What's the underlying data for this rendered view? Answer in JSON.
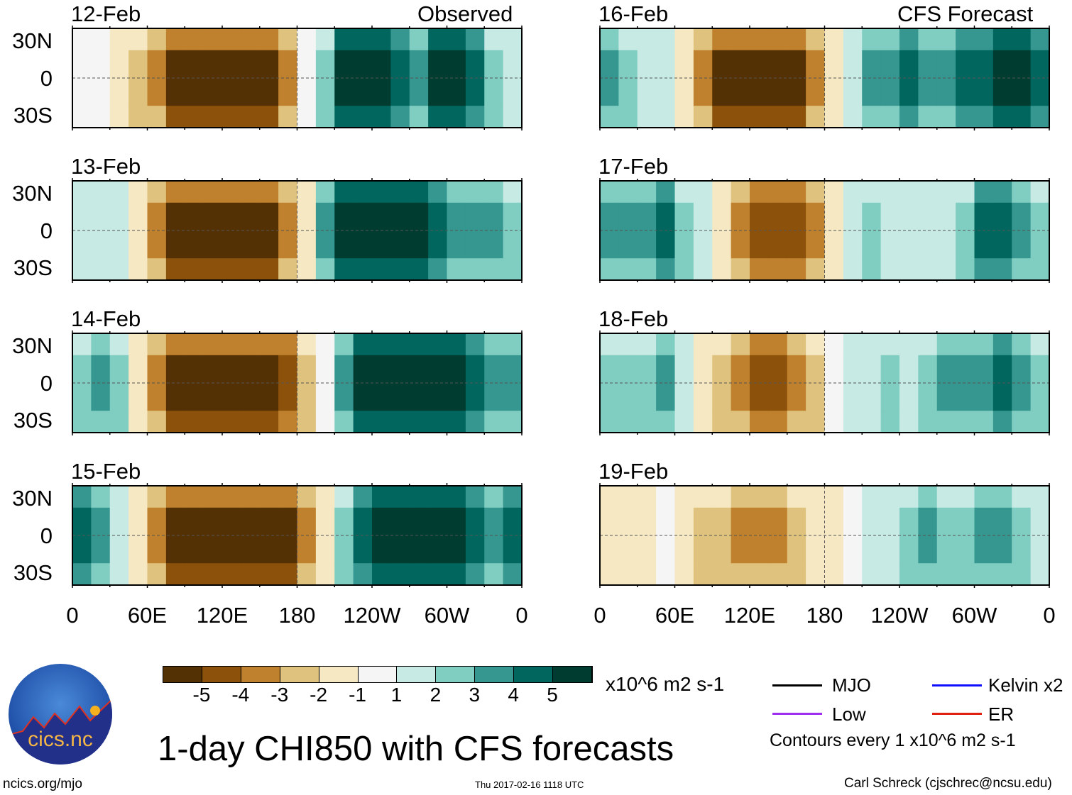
{
  "headers": {
    "observed": "Observed",
    "forecast": "CFS Forecast"
  },
  "lat_labels": [
    "30N",
    "0",
    "30S"
  ],
  "lon_labels": [
    "0",
    "60E",
    "120E",
    "180",
    "120W",
    "60W",
    "0"
  ],
  "colors": [
    "#543005",
    "#8c510a",
    "#bf812d",
    "#dfc27d",
    "#f6e8c3",
    "#f5f5f5",
    "#c7eae5",
    "#80cdc1",
    "#35978f",
    "#01665e",
    "#003c30"
  ],
  "chart_data": {
    "type": "heatmap",
    "title": "1-day CHI850 with CFS forecasts",
    "units": "x10^6 m2 s-1",
    "xlabel_ticks": [
      "0",
      "60E",
      "120E",
      "180",
      "120W",
      "60W",
      "0"
    ],
    "lon_bins_deg": [
      0,
      15,
      30,
      45,
      60,
      75,
      90,
      105,
      120,
      135,
      150,
      165,
      180,
      195,
      210,
      225,
      240,
      255,
      270,
      285,
      300,
      315,
      330,
      345
    ],
    "panels": [
      {
        "date": "12-Feb",
        "kind": "Observed",
        "values": [
          0,
          0,
          -1,
          -2,
          -3,
          -5,
          -5,
          -5,
          -5,
          -5,
          -5,
          -3,
          0,
          2,
          5,
          5,
          5,
          4,
          3,
          5,
          5,
          4,
          2,
          1
        ]
      },
      {
        "date": "13-Feb",
        "kind": "Observed",
        "values": [
          1,
          1,
          1,
          -1,
          -3,
          -5,
          -5,
          -5,
          -5,
          -5,
          -5,
          -3,
          -1,
          3,
          5,
          5,
          5,
          5,
          5,
          4,
          3,
          3,
          3,
          2
        ]
      },
      {
        "date": "14-Feb",
        "kind": "Observed",
        "values": [
          2,
          3,
          2,
          -1,
          -3,
          -5,
          -5,
          -5,
          -5,
          -5,
          -5,
          -4,
          -2,
          0,
          3,
          5,
          5,
          5,
          5,
          5,
          5,
          4,
          3,
          3
        ]
      },
      {
        "date": "15-Feb",
        "kind": "Observed",
        "values": [
          4,
          3,
          1,
          -1,
          -3,
          -5,
          -5,
          -5,
          -5,
          -5,
          -5,
          -5,
          -3,
          -1,
          2,
          4,
          5,
          5,
          5,
          5,
          5,
          4,
          3,
          4
        ]
      },
      {
        "date": "16-Feb",
        "kind": "CFS Forecast",
        "values": [
          3,
          2,
          1,
          1,
          -1,
          -3,
          -5,
          -5,
          -5,
          -5,
          -5,
          -3,
          -1,
          1,
          3,
          3,
          4,
          3,
          3,
          4,
          4,
          5,
          5,
          4
        ]
      },
      {
        "date": "17-Feb",
        "kind": "CFS Forecast",
        "values": [
          3,
          3,
          3,
          4,
          2,
          1,
          -1,
          -3,
          -4,
          -4,
          -4,
          -3,
          -1,
          1,
          2,
          1,
          1,
          1,
          1,
          2,
          4,
          4,
          3,
          2
        ]
      },
      {
        "date": "18-Feb",
        "kind": "CFS Forecast",
        "values": [
          2,
          2,
          2,
          3,
          1,
          -1,
          -2,
          -3,
          -4,
          -4,
          -3,
          -2,
          0,
          1,
          1,
          2,
          1,
          2,
          3,
          3,
          3,
          4,
          3,
          2
        ]
      },
      {
        "date": "19-Feb",
        "kind": "CFS Forecast",
        "values": [
          -1,
          -1,
          -1,
          0,
          -1,
          -2,
          -2,
          -3,
          -3,
          -3,
          -2,
          -1,
          -1,
          0,
          1,
          1,
          2,
          3,
          2,
          2,
          3,
          3,
          2,
          1
        ]
      }
    ],
    "colorbar": {
      "labels": [
        "-5",
        "-4",
        "-3",
        "-2",
        "-1",
        "1",
        "2",
        "3",
        "4",
        "5"
      ]
    },
    "legend": [
      {
        "label": "MJO",
        "color": "#000000"
      },
      {
        "label": "Kelvin x2",
        "color": "#1010ff"
      },
      {
        "label": "Low",
        "color": "#a030f0"
      },
      {
        "label": "ER",
        "color": "#e02010"
      }
    ]
  },
  "contour_note": "Contours every 1 x10^6 m2 s-1",
  "logo": {
    "text": "cics.nc",
    "ring": "Cooperative Institute for Climate and Satellites"
  },
  "footer": {
    "url": "ncics.org/mjo",
    "timestamp": "Thu 2017-02-16 1118 UTC",
    "author": "Carl Schreck (cjschrec@ncsu.edu)"
  }
}
